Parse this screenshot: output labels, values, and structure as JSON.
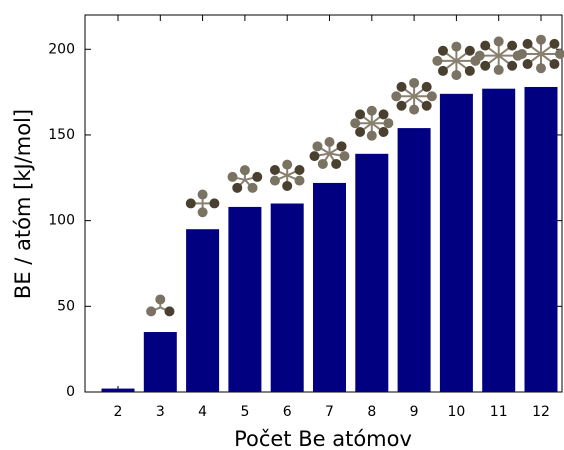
{
  "chart_data": {
    "type": "bar",
    "x_label": "Počet Be atómov",
    "y_label": "BE / atóm [kJ/mol]",
    "categories": [
      "2",
      "3",
      "4",
      "5",
      "6",
      "7",
      "8",
      "9",
      "10",
      "11",
      "12"
    ],
    "values": [
      2,
      35,
      95,
      108,
      110,
      122,
      139,
      154,
      174,
      177,
      178
    ],
    "color": "#000080",
    "ylim": [
      0,
      220
    ],
    "yticks": [
      0,
      50,
      100,
      150,
      200
    ],
    "grid": false
  }
}
